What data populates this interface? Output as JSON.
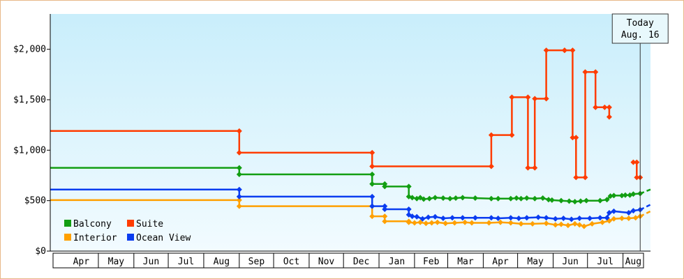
{
  "chart_data": {
    "type": "line",
    "title": "",
    "xlabel": "",
    "ylabel": "",
    "ylim": [
      0,
      2350
    ],
    "x_range": [
      "2023-03-20",
      "2024-08-25"
    ],
    "y_ticks": [
      {
        "value": 0,
        "label": "$0"
      },
      {
        "value": 500,
        "label": "$500"
      },
      {
        "value": 1000,
        "label": "$1,000"
      },
      {
        "value": 1500,
        "label": "$1,500"
      },
      {
        "value": 2000,
        "label": "$2,000"
      }
    ],
    "x_ticks": [
      "Apr",
      "May",
      "Jun",
      "Jul",
      "Aug",
      "Sep",
      "Oct",
      "Nov",
      "Dec",
      "Jan",
      "Feb",
      "Mar",
      "Apr",
      "May",
      "Jun",
      "Jul",
      "Aug"
    ],
    "x_tick_dates": [
      "2023-04-01",
      "2023-05-01",
      "2023-06-01",
      "2023-07-01",
      "2023-08-01",
      "2023-09-01",
      "2023-10-01",
      "2023-11-01",
      "2023-12-01",
      "2024-01-01",
      "2024-02-01",
      "2024-03-01",
      "2024-04-01",
      "2024-05-01",
      "2024-06-01",
      "2024-07-01",
      "2024-08-01"
    ],
    "grid": false,
    "legend_position": "bottom-left",
    "today": {
      "label_line1": "Today",
      "label_line2": "Aug. 16",
      "date": "2024-08-16"
    },
    "series": [
      {
        "name": "Balcony",
        "color": "#129e12",
        "points": [
          [
            "2023-03-20",
            825
          ],
          [
            "2023-09-01",
            825
          ],
          [
            "2023-09-01",
            760
          ],
          [
            "2023-12-26",
            760
          ],
          [
            "2023-12-26",
            665
          ],
          [
            "2024-01-06",
            665
          ],
          [
            "2024-01-06",
            640
          ],
          [
            "2024-01-27",
            640
          ],
          [
            "2024-01-27",
            540
          ],
          [
            "2024-01-30",
            530
          ],
          [
            "2024-02-03",
            520
          ],
          [
            "2024-02-06",
            530
          ],
          [
            "2024-02-09",
            515
          ],
          [
            "2024-02-14",
            520
          ],
          [
            "2024-02-19",
            530
          ],
          [
            "2024-02-26",
            525
          ],
          [
            "2024-03-03",
            520
          ],
          [
            "2024-03-08",
            525
          ],
          [
            "2024-03-14",
            530
          ],
          [
            "2024-03-25",
            525
          ],
          [
            "2024-04-08",
            520
          ],
          [
            "2024-04-14",
            520
          ],
          [
            "2024-04-25",
            520
          ],
          [
            "2024-04-30",
            525
          ],
          [
            "2024-05-04",
            520
          ],
          [
            "2024-05-09",
            525
          ],
          [
            "2024-05-16",
            520
          ],
          [
            "2024-05-23",
            525
          ],
          [
            "2024-05-28",
            510
          ],
          [
            "2024-05-31",
            505
          ],
          [
            "2024-06-08",
            500
          ],
          [
            "2024-06-15",
            495
          ],
          [
            "2024-06-20",
            490
          ],
          [
            "2024-06-25",
            495
          ],
          [
            "2024-06-30",
            500
          ],
          [
            "2024-07-12",
            500
          ],
          [
            "2024-07-18",
            510
          ],
          [
            "2024-07-21",
            545
          ],
          [
            "2024-07-24",
            550
          ],
          [
            "2024-07-31",
            550
          ],
          [
            "2024-08-03",
            555
          ],
          [
            "2024-08-07",
            555
          ],
          [
            "2024-08-10",
            565
          ],
          [
            "2024-08-16",
            570
          ]
        ],
        "forecast": [
          [
            "2024-08-16",
            570
          ],
          [
            "2024-08-25",
            610
          ]
        ]
      },
      {
        "name": "Suite",
        "color": "#ff3c00",
        "points": [
          [
            "2023-03-20",
            1190
          ],
          [
            "2023-09-01",
            1190
          ],
          [
            "2023-09-01",
            975
          ],
          [
            "2023-12-26",
            975
          ],
          [
            "2023-12-26",
            840
          ],
          [
            "2024-04-08",
            840
          ],
          [
            "2024-04-08",
            1150
          ],
          [
            "2024-04-26",
            1150
          ],
          [
            "2024-04-26",
            1525
          ],
          [
            "2024-05-10",
            1525
          ],
          [
            "2024-05-10",
            825
          ],
          [
            "2024-05-16",
            825
          ],
          [
            "2024-05-16",
            1510
          ],
          [
            "2024-05-26",
            1510
          ],
          [
            "2024-05-26",
            1990
          ],
          [
            "2024-06-11",
            1990
          ],
          [
            "2024-06-11",
            1990
          ],
          [
            "2024-06-18",
            1990
          ],
          [
            "2024-06-18",
            1125
          ],
          [
            "2024-06-21",
            1125
          ],
          [
            "2024-06-21",
            730
          ],
          [
            "2024-06-29",
            730
          ],
          [
            "2024-06-29",
            1775
          ],
          [
            "2024-07-08",
            1775
          ],
          [
            "2024-07-08",
            1425
          ],
          [
            "2024-07-16",
            1425
          ],
          [
            "2024-07-20",
            1425
          ],
          [
            "2024-07-20",
            1330
          ]
        ],
        "points_b": [
          [
            "2024-08-10",
            880
          ],
          [
            "2024-08-13",
            880
          ],
          [
            "2024-08-13",
            730
          ],
          [
            "2024-08-16",
            730
          ]
        ],
        "forecast": []
      },
      {
        "name": "Interior",
        "color": "#ffa000",
        "points": [
          [
            "2023-03-20",
            505
          ],
          [
            "2023-09-01",
            505
          ],
          [
            "2023-09-01",
            445
          ],
          [
            "2023-12-26",
            445
          ],
          [
            "2023-12-26",
            345
          ],
          [
            "2024-01-06",
            345
          ],
          [
            "2024-01-06",
            295
          ],
          [
            "2024-01-27",
            295
          ],
          [
            "2024-01-27",
            285
          ],
          [
            "2024-02-01",
            280
          ],
          [
            "2024-02-06",
            285
          ],
          [
            "2024-02-11",
            275
          ],
          [
            "2024-02-16",
            280
          ],
          [
            "2024-02-21",
            285
          ],
          [
            "2024-02-28",
            275
          ],
          [
            "2024-03-07",
            280
          ],
          [
            "2024-03-16",
            285
          ],
          [
            "2024-03-22",
            280
          ],
          [
            "2024-04-06",
            280
          ],
          [
            "2024-04-16",
            285
          ],
          [
            "2024-04-25",
            280
          ],
          [
            "2024-05-04",
            270
          ],
          [
            "2024-05-14",
            270
          ],
          [
            "2024-05-26",
            275
          ],
          [
            "2024-06-03",
            260
          ],
          [
            "2024-06-08",
            265
          ],
          [
            "2024-06-14",
            255
          ],
          [
            "2024-06-20",
            270
          ],
          [
            "2024-06-24",
            260
          ],
          [
            "2024-06-28",
            245
          ],
          [
            "2024-07-05",
            270
          ],
          [
            "2024-07-14",
            285
          ],
          [
            "2024-07-20",
            300
          ],
          [
            "2024-07-24",
            320
          ],
          [
            "2024-07-31",
            325
          ],
          [
            "2024-08-06",
            325
          ],
          [
            "2024-08-12",
            330
          ],
          [
            "2024-08-16",
            345
          ]
        ],
        "forecast": [
          [
            "2024-08-16",
            345
          ],
          [
            "2024-08-25",
            395
          ]
        ]
      },
      {
        "name": "Ocean View",
        "color": "#0a3cf0",
        "points": [
          [
            "2023-03-20",
            610
          ],
          [
            "2023-09-01",
            610
          ],
          [
            "2023-09-01",
            540
          ],
          [
            "2023-12-26",
            540
          ],
          [
            "2023-12-26",
            445
          ],
          [
            "2024-01-06",
            445
          ],
          [
            "2024-01-06",
            415
          ],
          [
            "2024-01-27",
            415
          ],
          [
            "2024-01-27",
            360
          ],
          [
            "2024-01-30",
            345
          ],
          [
            "2024-02-03",
            340
          ],
          [
            "2024-02-08",
            320
          ],
          [
            "2024-02-13",
            335
          ],
          [
            "2024-02-19",
            340
          ],
          [
            "2024-02-26",
            325
          ],
          [
            "2024-03-05",
            330
          ],
          [
            "2024-03-14",
            330
          ],
          [
            "2024-03-25",
            330
          ],
          [
            "2024-04-08",
            330
          ],
          [
            "2024-04-14",
            325
          ],
          [
            "2024-04-25",
            330
          ],
          [
            "2024-05-02",
            325
          ],
          [
            "2024-05-09",
            330
          ],
          [
            "2024-05-19",
            335
          ],
          [
            "2024-05-26",
            330
          ],
          [
            "2024-06-03",
            320
          ],
          [
            "2024-06-10",
            325
          ],
          [
            "2024-06-17",
            315
          ],
          [
            "2024-06-24",
            325
          ],
          [
            "2024-07-03",
            325
          ],
          [
            "2024-07-12",
            330
          ],
          [
            "2024-07-18",
            330
          ],
          [
            "2024-07-20",
            380
          ],
          [
            "2024-07-24",
            395
          ],
          [
            "2024-08-06",
            380
          ],
          [
            "2024-08-10",
            400
          ],
          [
            "2024-08-16",
            410
          ]
        ],
        "forecast": [
          [
            "2024-08-16",
            410
          ],
          [
            "2024-08-25",
            460
          ]
        ]
      }
    ],
    "legend": [
      {
        "name": "Balcony",
        "color": "#129e12"
      },
      {
        "name": "Suite",
        "color": "#ff3c00"
      },
      {
        "name": "Interior",
        "color": "#ffa000"
      },
      {
        "name": "Ocean View",
        "color": "#0a3cf0"
      }
    ]
  }
}
